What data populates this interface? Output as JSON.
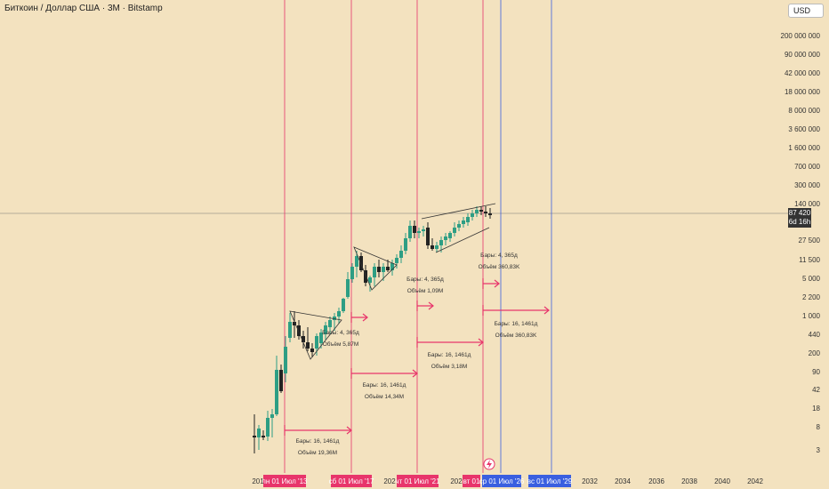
{
  "header": {
    "title": "Биткоин / Доллар США · 3М · Bitstamp",
    "currency": "USD"
  },
  "price_badge": {
    "price": "87 420",
    "countdown": "6d 16h"
  },
  "colors": {
    "background": "#f3e2bf",
    "up": "#2e9e84",
    "down": "#222222",
    "red_marker": "#e8356b",
    "blue_marker": "#3a5fe0",
    "grid": "#999999"
  },
  "icons": {
    "lightning": "lightning-icon"
  },
  "chart_data": {
    "type": "candlestick",
    "title": "Биткоин / Доллар США · 3М · Bitstamp",
    "y_scale": "log",
    "y_tick_labels": [
      "200 000 000",
      "90 000 000",
      "42 000 000",
      "18 000 000",
      "8 000 000",
      "3 600 000",
      "1 600 000",
      "700 000",
      "300 000",
      "140 000",
      "27 500",
      "11 500",
      "5 000",
      "2 200",
      "1 000",
      "440",
      "200",
      "90",
      "42",
      "18",
      "8",
      "3"
    ],
    "x_tick_labels": [
      "201",
      "202",
      "202",
      "2032",
      "2034",
      "2036",
      "2038",
      "2040",
      "2042"
    ],
    "vertical_markers": [
      {
        "label": "пн 01 Июл '13",
        "color": "red"
      },
      {
        "label": "сб 01 Июл '17",
        "color": "red"
      },
      {
        "label": "чт 01 Июл '21",
        "color": "red"
      },
      {
        "label": "вт 01",
        "color": "red"
      },
      {
        "label": "ср 01 Июл '26",
        "color": "blue"
      },
      {
        "label": "вс 01 Июл '29",
        "color": "blue"
      }
    ],
    "measure_annotations": [
      {
        "bars": "Бары: 16, 1461д",
        "volume": "Объём 19,36M"
      },
      {
        "bars": "Бары: 4, 365д",
        "volume": "Объём 5,87M"
      },
      {
        "bars": "Бары: 16, 1461д",
        "volume": "Объём 14,34M"
      },
      {
        "bars": "Бары: 4, 365д",
        "volume": "Объём 1,09M"
      },
      {
        "bars": "Бары: 16, 1461д",
        "volume": "Объём 3,18M"
      },
      {
        "bars": "Бары: 4, 365д",
        "volume": "Объём 360,83K"
      },
      {
        "bars": "Бары: 16, 1461д",
        "volume": "Объём 360,83K"
      }
    ],
    "last_price": 87420
  }
}
